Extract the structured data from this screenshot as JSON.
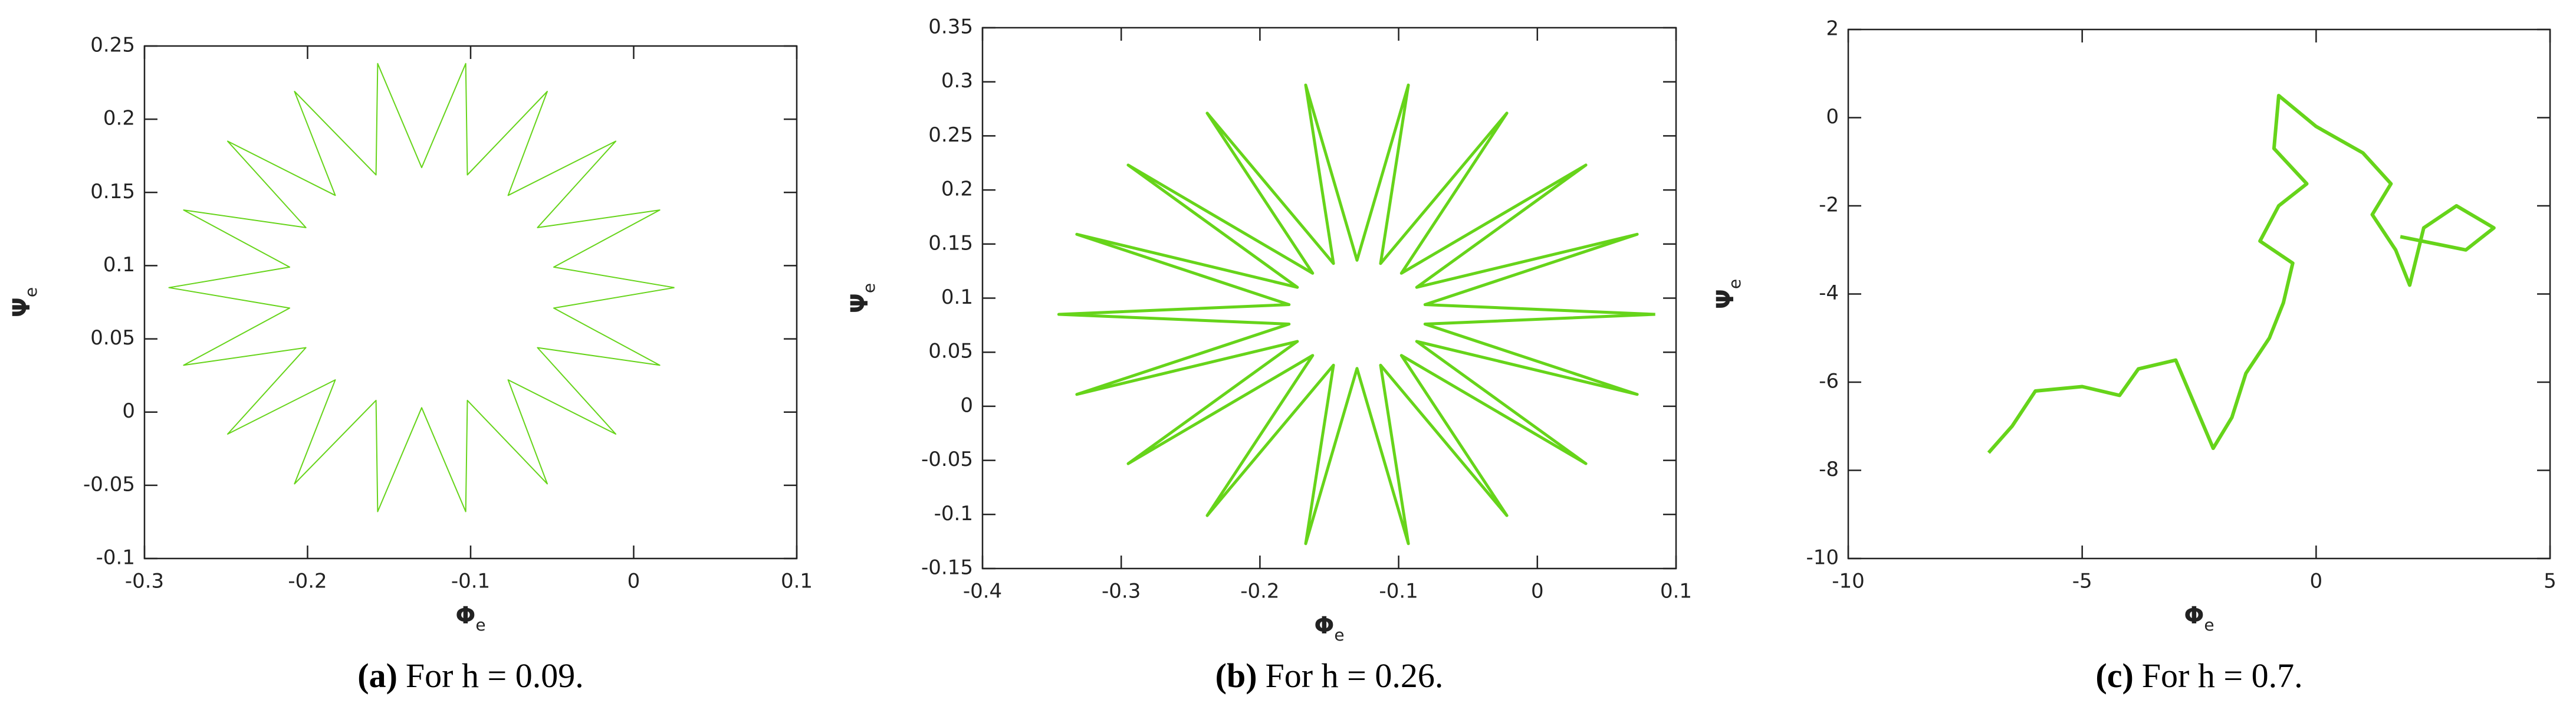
{
  "chart_data": [
    {
      "type": "line",
      "color": "#66d41a",
      "x_label": {
        "symbol": "Φ",
        "subscript": "e"
      },
      "y_label": {
        "symbol": "Ψ",
        "subscript": "e"
      },
      "caption": {
        "label": "(a)",
        "text": "For h = 0.09."
      },
      "xlim": [
        -0.3,
        0.1
      ],
      "xticks": [
        -0.3,
        -0.2,
        -0.1,
        0,
        0.1
      ],
      "ylim": [
        -0.1,
        0.25
      ],
      "yticks": [
        -0.1,
        -0.05,
        0,
        0.05,
        0.1,
        0.15,
        0.2,
        0.25
      ],
      "x": [
        0.025,
        -0.049,
        0.016,
        -0.059,
        -0.011,
        -0.077,
        -0.053,
        -0.102,
        -0.103,
        -0.13,
        -0.157,
        -0.158,
        -0.208,
        -0.183,
        -0.249,
        -0.201,
        -0.276,
        -0.211,
        -0.285,
        -0.211,
        -0.276,
        -0.201,
        -0.249,
        -0.183,
        -0.208,
        -0.158,
        -0.157,
        -0.13,
        -0.103,
        -0.102,
        -0.053,
        -0.077,
        -0.011,
        -0.059,
        0.016,
        -0.049,
        0.025
      ],
      "values": [
        0.085,
        0.099,
        0.138,
        0.126,
        0.185,
        0.148,
        0.219,
        0.162,
        0.238,
        0.167,
        0.238,
        0.162,
        0.219,
        0.148,
        0.185,
        0.126,
        0.138,
        0.099,
        0.085,
        0.071,
        0.032,
        0.044,
        -0.015,
        0.022,
        -0.049,
        0.008,
        -0.068,
        0.003,
        -0.068,
        0.008,
        -0.049,
        0.022,
        -0.015,
        0.044,
        0.032,
        0.071,
        0.085
      ]
    },
    {
      "type": "line",
      "color": "#66d41a",
      "x_label": {
        "symbol": "Φ",
        "subscript": "e"
      },
      "y_label": {
        "symbol": "Ψ",
        "subscript": "e"
      },
      "caption": {
        "label": "(b)",
        "text": "For h = 0.26."
      },
      "xlim": [
        -0.4,
        0.1
      ],
      "xticks": [
        -0.4,
        -0.3,
        -0.2,
        -0.1,
        0,
        0.1
      ],
      "ylim": [
        -0.15,
        0.35
      ],
      "yticks": [
        -0.15,
        -0.1,
        -0.05,
        0,
        0.05,
        0.1,
        0.15,
        0.2,
        0.25,
        0.3,
        0.35
      ],
      "x": [
        0.085,
        -0.081,
        0.072,
        -0.087,
        0.035,
        -0.098,
        -0.022,
        -0.113,
        -0.093,
        -0.13,
        -0.167,
        -0.147,
        -0.238,
        -0.162,
        -0.295,
        -0.173,
        -0.332,
        -0.179,
        -0.345,
        -0.179,
        -0.332,
        -0.173,
        -0.295,
        -0.162,
        -0.238,
        -0.147,
        -0.167,
        -0.13,
        -0.093,
        -0.113,
        -0.022,
        -0.098,
        0.035,
        -0.087,
        0.072,
        -0.081,
        0.085
      ],
      "values": [
        0.085,
        0.094,
        0.159,
        0.11,
        0.223,
        0.123,
        0.271,
        0.132,
        0.297,
        0.135,
        0.297,
        0.132,
        0.271,
        0.123,
        0.223,
        0.11,
        0.159,
        0.094,
        0.085,
        0.076,
        0.011,
        0.06,
        -0.053,
        0.047,
        -0.101,
        0.038,
        -0.127,
        0.035,
        -0.127,
        0.038,
        -0.101,
        0.047,
        -0.053,
        0.06,
        0.011,
        0.076,
        0.085
      ]
    },
    {
      "type": "line",
      "color": "#66d41a",
      "x_label": {
        "symbol": "Φ",
        "subscript": "e"
      },
      "y_label": {
        "symbol": "Ψ",
        "subscript": "e"
      },
      "caption": {
        "label": "(c)",
        "text": "For h = 0.7."
      },
      "xlim": [
        -10,
        5
      ],
      "xticks": [
        -10,
        -5,
        0,
        5
      ],
      "ylim": [
        -10,
        2
      ],
      "yticks": [
        -10,
        -8,
        -6,
        -4,
        -2,
        0,
        2
      ],
      "x": [
        -7,
        -6.5,
        -6,
        -5,
        -4.2,
        -3.8,
        -3,
        -2.6,
        -2.2,
        -1.8,
        -1.5,
        -1,
        -0.7,
        -0.5,
        -1.2,
        -0.8,
        -0.2,
        -0.9,
        -0.8,
        0,
        1,
        1.6,
        1.2,
        1.7,
        2,
        2.3,
        3,
        3.8,
        3.2,
        1.8
      ],
      "values": [
        -7.6,
        -7,
        -6.2,
        -6.1,
        -6.3,
        -5.7,
        -5.5,
        -6.5,
        -7.5,
        -6.8,
        -5.8,
        -5,
        -4.2,
        -3.3,
        -2.8,
        -2,
        -1.5,
        -0.7,
        0.5,
        -0.2,
        -0.8,
        -1.5,
        -2.2,
        -3,
        -3.8,
        -2.5,
        -2,
        -2.5,
        -3,
        -2.7
      ]
    }
  ]
}
